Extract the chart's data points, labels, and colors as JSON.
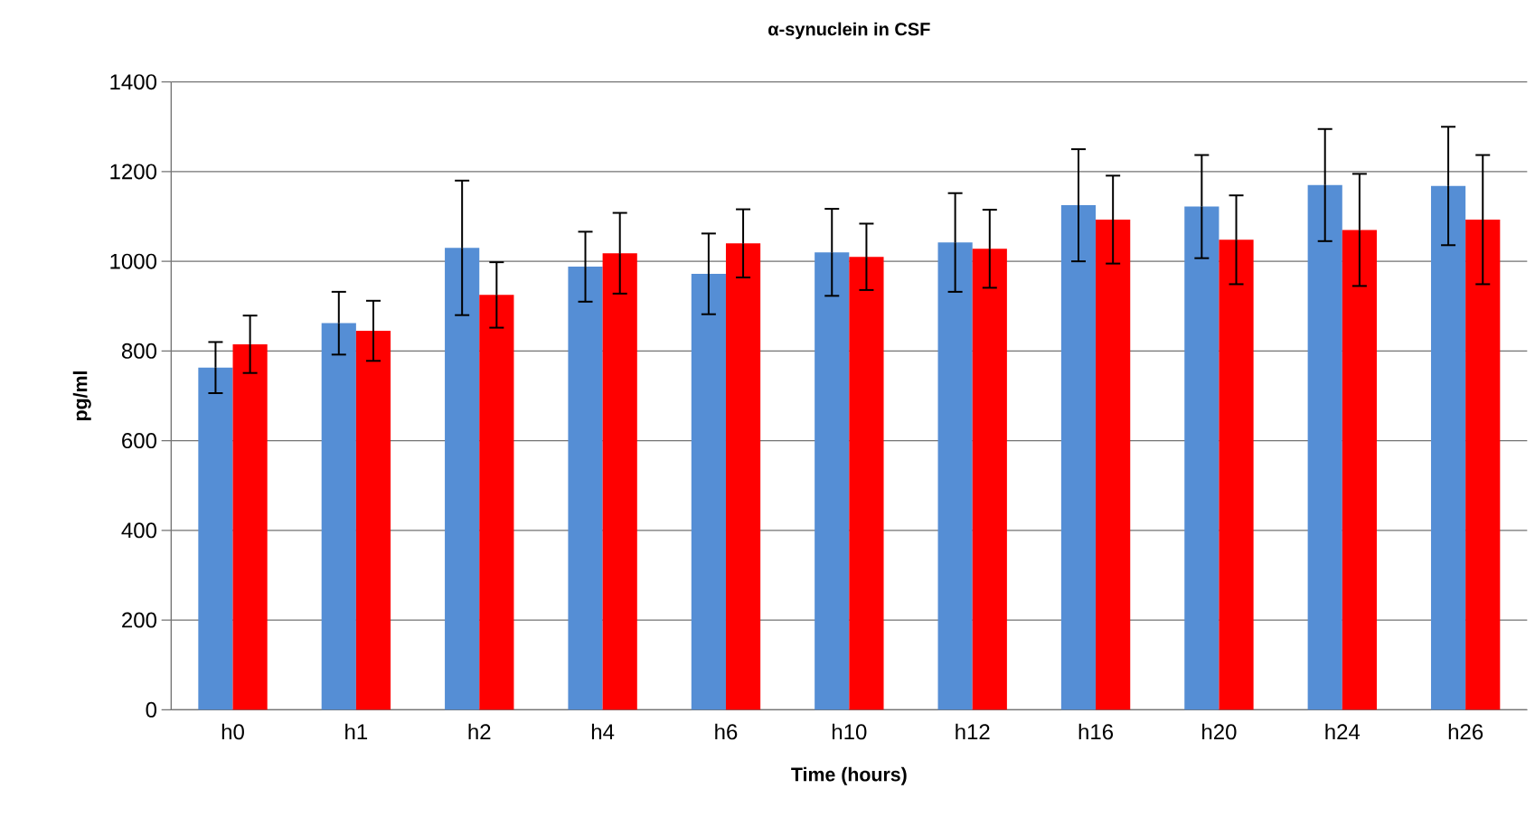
{
  "chart_data": {
    "type": "bar",
    "title": "α-synuclein  in CSF",
    "xlabel": "Time (hours)",
    "ylabel": "pg/ml",
    "categories": [
      "h0",
      "h1",
      "h2",
      "h4",
      "h6",
      "h10",
      "h12",
      "h16",
      "h20",
      "h24",
      "h26"
    ],
    "series": [
      {
        "color": "#558ed5",
        "values": [
          763,
          862,
          1030,
          988,
          972,
          1020,
          1042,
          1125,
          1122,
          1170,
          1168
        ],
        "errors": [
          57,
          70,
          150,
          78,
          90,
          97,
          110,
          125,
          115,
          125,
          132
        ]
      },
      {
        "color": "#ff0000",
        "values": [
          815,
          845,
          925,
          1018,
          1040,
          1010,
          1028,
          1093,
          1048,
          1070,
          1093
        ],
        "errors": [
          64,
          67,
          73,
          90,
          76,
          74,
          87,
          98,
          99,
          125,
          144
        ]
      }
    ],
    "ylim": [
      0,
      1400
    ],
    "yticks": [
      0,
      200,
      400,
      600,
      800,
      1000,
      1200,
      1400
    ],
    "grid": "y",
    "legend": false
  }
}
